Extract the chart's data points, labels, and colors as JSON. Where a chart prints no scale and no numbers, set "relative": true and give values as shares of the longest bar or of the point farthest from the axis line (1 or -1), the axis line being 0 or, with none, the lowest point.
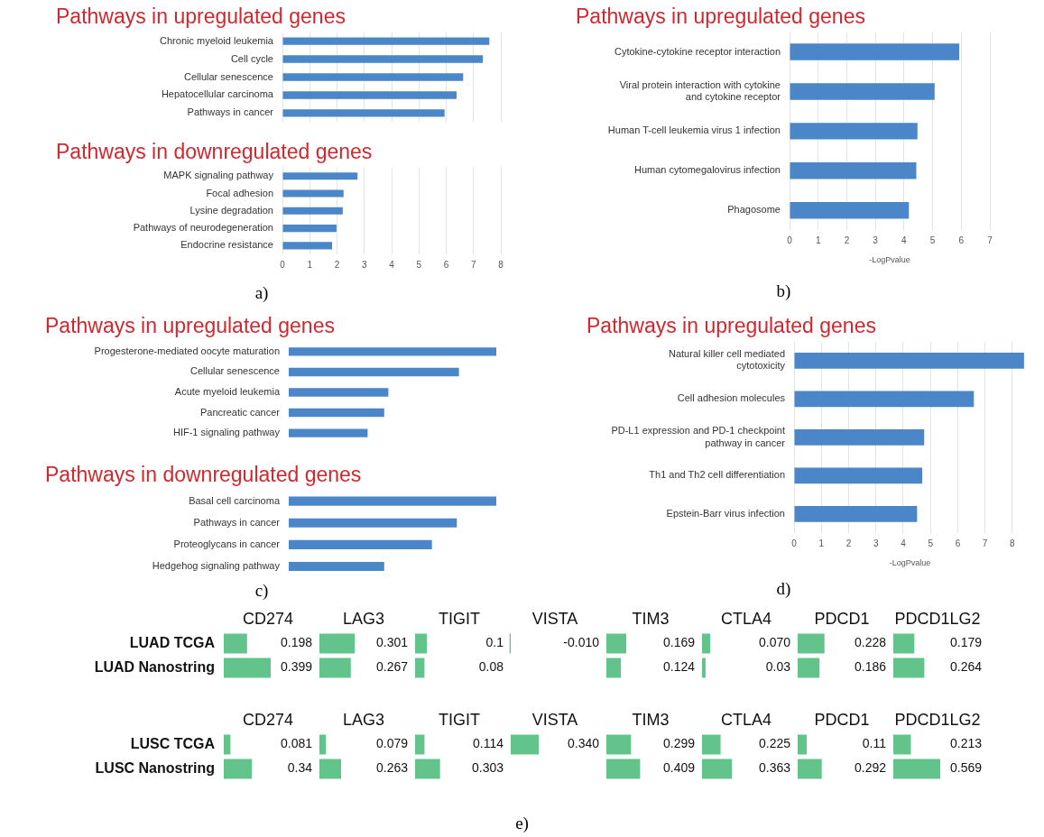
{
  "chart_data": [
    {
      "type": "bar",
      "orientation": "horizontal",
      "title": "Pathways in upregulated genes",
      "categories": [
        "Chronic myeloid leukemia",
        "Cell cycle",
        "Cellular senescence",
        "Hepatocellular carcinoma",
        "Pathways in cancer"
      ],
      "values": [
        7.58,
        7.34,
        6.62,
        6.38,
        5.94
      ],
      "color": "#4a86c8",
      "xlim": [
        0,
        8
      ],
      "xticks": [
        0,
        1,
        2,
        3,
        4,
        5,
        6,
        7,
        8
      ],
      "grid": "x",
      "tick_labels": "y"
    },
    {
      "type": "bar",
      "orientation": "horizontal",
      "title": "Pathways in downregulated genes",
      "categories": [
        "MAPK signaling pathway",
        "Focal adhesion",
        "Lysine degradation",
        "Pathways of neurodegeneration",
        "Endocrine resistance"
      ],
      "values": [
        2.75,
        2.24,
        2.21,
        1.98,
        1.82
      ],
      "color": "#4a86c8",
      "xlim": [
        0,
        8
      ],
      "xticks": [
        0,
        1,
        2,
        3,
        4,
        5,
        6,
        7,
        8
      ],
      "grid": "x",
      "annotations": [
        "a)"
      ]
    },
    {
      "type": "bar",
      "orientation": "horizontal",
      "title": "Pathways in upregulated genes",
      "categories": [
        "Cytokine-cytokine receptor interaction",
        "Viral protein interaction with cytokine and cytokine receptor",
        "Human T-cell leukemia virus 1 infection",
        "Human cytomegalovirus infection",
        "Phagosome"
      ],
      "values": [
        5.93,
        5.07,
        4.47,
        4.43,
        4.17
      ],
      "color": "#4a86c8",
      "xlim": [
        0,
        7
      ],
      "xticks": [
        0,
        1,
        2,
        3,
        4,
        5,
        6,
        7
      ],
      "xlabel": "-LogPvalue",
      "grid": "x",
      "annotations": [
        "b)"
      ]
    },
    {
      "type": "bar",
      "orientation": "horizontal",
      "relative": true,
      "title": "Pathways in upregulated genes",
      "categories": [
        "Progesterone-mediated oocyte maturation",
        "Cellular senescence",
        "Acute myeloid leukemia",
        "Pancreatic cancer",
        "HIF-1 signaling pathway"
      ],
      "values": [
        1,
        0.82,
        0.48,
        0.46,
        0.38
      ],
      "color": "#4a86c8"
    },
    {
      "type": "bar",
      "orientation": "horizontal",
      "relative": true,
      "title": "Pathways in downregulated genes",
      "categories": [
        "Basal cell carcinoma",
        "Pathways in cancer",
        "Proteoglycans in cancer",
        "Hedgehog signaling pathway"
      ],
      "values": [
        1,
        0.81,
        0.69,
        0.46
      ],
      "color": "#4a86c8",
      "annotations": [
        "c)"
      ]
    },
    {
      "type": "bar",
      "orientation": "horizontal",
      "title": "Pathways in upregulated genes",
      "categories": [
        "Natural killer cell mediated cytotoxicity",
        "Cell adhesion molecules",
        "PD-L1 expression and PD-1 checkpoint pathway in cancer",
        "Th1 and Th2 cell differentiation",
        "Epstein-Barr virus infection"
      ],
      "values": [
        8.43,
        6.59,
        4.77,
        4.7,
        4.51
      ],
      "color": "#4a86c8",
      "xlim": [
        0,
        8.5
      ],
      "xticks": [
        0,
        1,
        2,
        3,
        4,
        5,
        6,
        7,
        8
      ],
      "xlabel": "-LogPvalue",
      "grid": "x",
      "annotations": [
        "d)"
      ]
    },
    {
      "type": "heatmap",
      "categories": [
        "CD274",
        "LAG3",
        "TIGIT",
        "VISTA",
        "TIM3",
        "CTLA4",
        "PDCD1",
        "PDCD1LG2"
      ],
      "y_categories": [
        "LUAD TCGA",
        "LUAD Nanostring"
      ],
      "color": "#62c48a",
      "cells": [
        [
          0.198,
          0.301,
          0.1,
          -0.01,
          0.169,
          0.07,
          0.228,
          0.179
        ],
        [
          0.399,
          0.267,
          0.08,
          null,
          0.124,
          0.03,
          0.186,
          0.264
        ]
      ],
      "cell_labels": [
        [
          "0.198",
          "0.301",
          "0.1",
          "-0.010",
          "0.169",
          "0.070",
          "0.228",
          "0.179"
        ],
        [
          "0.399",
          "0.267",
          "0.08",
          null,
          "0.124",
          "0.03",
          "0.186",
          "0.264"
        ]
      ]
    },
    {
      "type": "heatmap",
      "categories": [
        "CD274",
        "LAG3",
        "TIGIT",
        "VISTA",
        "TIM3",
        "CTLA4",
        "PDCD1",
        "PDCD1LG2"
      ],
      "y_categories": [
        "LUSC TCGA",
        "LUSC Nanostring"
      ],
      "color": "#62c48a",
      "cells": [
        [
          0.081,
          0.079,
          0.114,
          0.34,
          0.299,
          0.225,
          0.11,
          0.213
        ],
        [
          0.34,
          0.263,
          0.303,
          null,
          0.409,
          0.363,
          0.292,
          0.569
        ]
      ],
      "cell_labels": [
        [
          "0.081",
          "0.079",
          "0.114",
          "0.340",
          "0.299",
          "0.225",
          "0.11",
          "0.213"
        ],
        [
          "0.34",
          "0.263",
          "0.303",
          null,
          "0.409",
          "0.363",
          "0.292",
          "0.569"
        ]
      ],
      "annotations": [
        "e)"
      ]
    }
  ]
}
